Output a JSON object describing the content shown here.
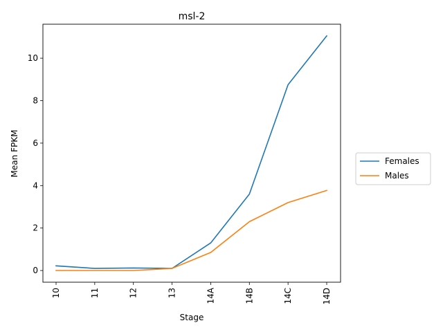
{
  "chart_data": {
    "type": "line",
    "title": "msl-2",
    "xlabel": "Stage",
    "ylabel": "Mean FPKM",
    "categories": [
      "10",
      "11",
      "12",
      "13",
      "14A",
      "14B",
      "14C",
      "14D"
    ],
    "series": [
      {
        "name": "Females",
        "color": "#1f77b4",
        "values": [
          0.22,
          0.1,
          0.12,
          0.1,
          1.3,
          3.6,
          8.75,
          11.05
        ]
      },
      {
        "name": "Males",
        "color": "#ff7f0e",
        "values": [
          0.0,
          0.0,
          0.0,
          0.1,
          0.85,
          2.3,
          3.2,
          3.77
        ]
      }
    ],
    "ylim": [
      -0.55,
      11.6
    ],
    "yticks": [
      0,
      2,
      4,
      6,
      8,
      10
    ],
    "grid": false,
    "legend_position": "outside-right"
  }
}
